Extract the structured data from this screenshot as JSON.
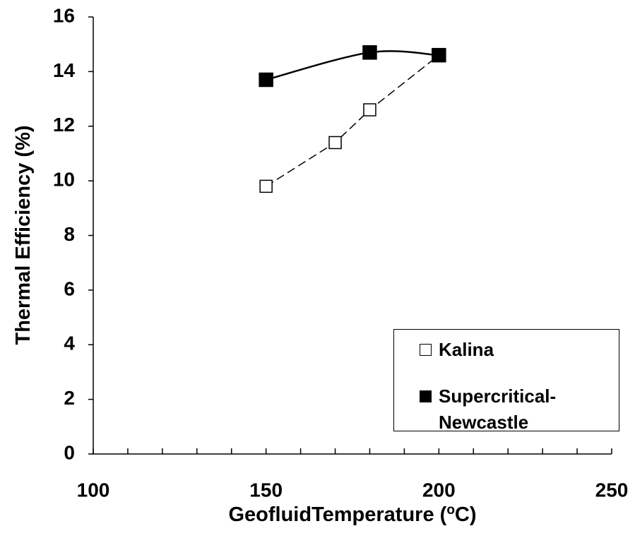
{
  "chart_data": {
    "type": "line",
    "ylabel": "Thermal Efficiency (%)",
    "xlabel": [
      "GeofluidTemperature (",
      "o",
      "C)"
    ],
    "xlim": [
      100,
      250
    ],
    "xticks": [
      100,
      150,
      200,
      250
    ],
    "xminorticks": [
      110,
      120,
      130,
      140,
      160,
      170,
      180,
      190,
      210,
      220,
      230,
      240
    ],
    "ylim": [
      0,
      16
    ],
    "yticks": [
      0,
      2,
      4,
      6,
      8,
      10,
      12,
      14,
      16
    ],
    "series": [
      {
        "name": "Kalina",
        "color": "#000000",
        "marker": "hollow-square",
        "line": "dashed",
        "x": [
          150,
          170,
          180,
          200
        ],
        "values": [
          9.8,
          11.4,
          12.6,
          14.6
        ]
      },
      {
        "name": "Supercritical-Newcastle",
        "color": "#000000",
        "marker": "filled-square",
        "line": "solid-smooth",
        "x": [
          150,
          180,
          200
        ],
        "values": [
          13.7,
          14.7,
          14.6
        ]
      }
    ],
    "legend": "lower right"
  }
}
